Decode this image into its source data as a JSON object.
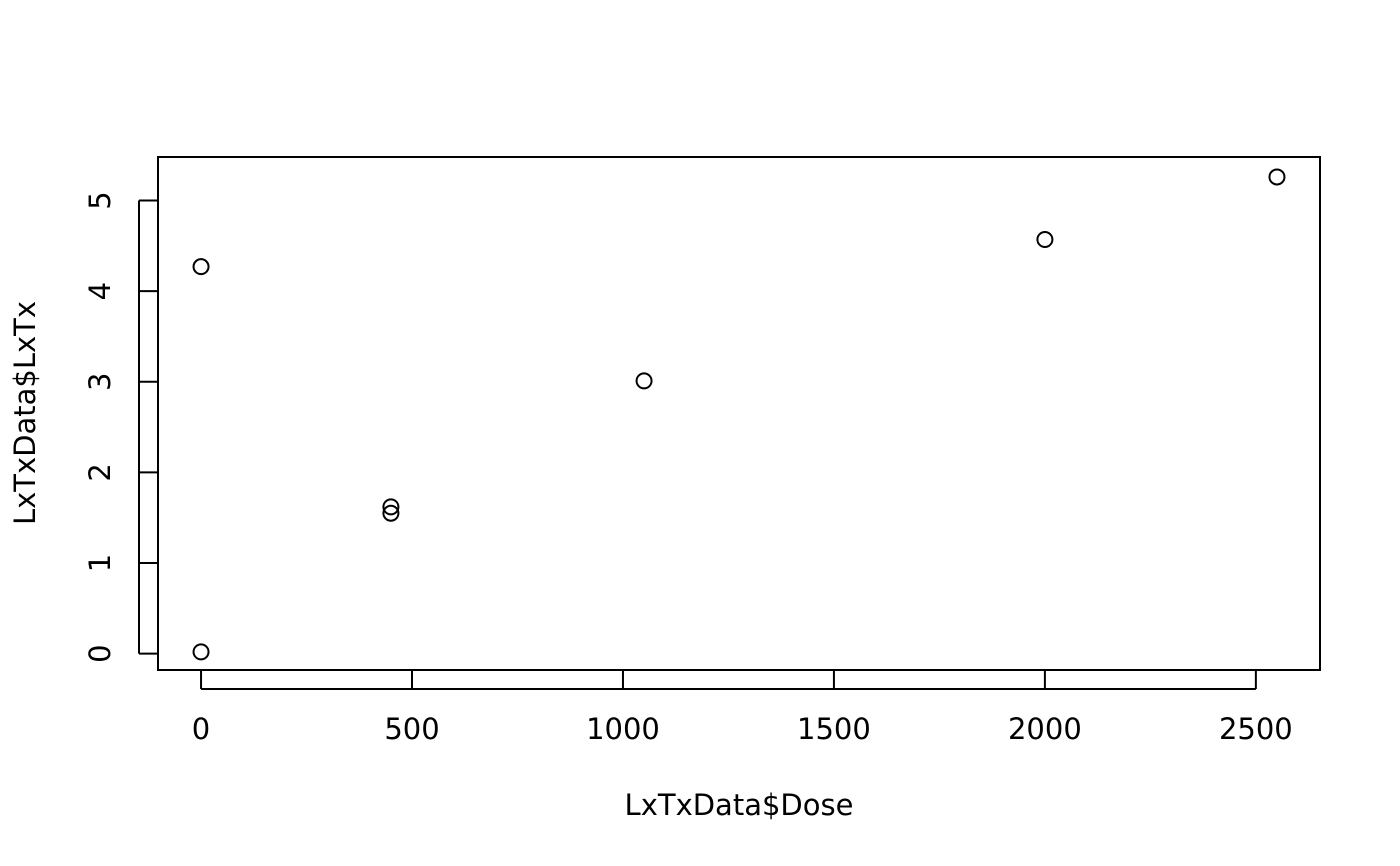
{
  "chart_data": {
    "type": "scatter",
    "title": "",
    "xlabel": "LxTxData$Dose",
    "ylabel": "LxTxData$LxTx",
    "xlim": [
      -102,
      2652
    ],
    "ylim": [
      -0.18,
      5.48
    ],
    "xticks": [
      0,
      500,
      1000,
      1500,
      2000,
      2500
    ],
    "yticks": [
      0,
      1,
      2,
      3,
      4,
      5
    ],
    "grid": false,
    "legend": "none",
    "series": [
      {
        "points": [
          {
            "x": 0,
            "y": 0.02
          },
          {
            "x": 0,
            "y": 4.27
          },
          {
            "x": 450,
            "y": 1.62
          },
          {
            "x": 450,
            "y": 1.55
          },
          {
            "x": 1050,
            "y": 3.01
          },
          {
            "x": 2000,
            "y": 4.57
          },
          {
            "x": 2550,
            "y": 5.26
          }
        ]
      }
    ]
  }
}
